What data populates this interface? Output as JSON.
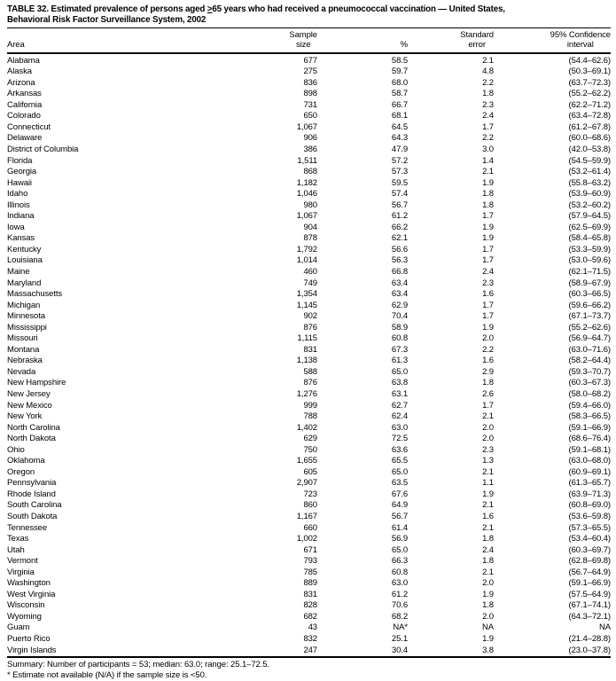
{
  "title": {
    "line1_before": "TABLE 32. Estimated prevalence of persons aged ",
    "geq": ">",
    "line1_after": "65 years who had received a pneumococcal vaccination — United States,",
    "line2": "Behavioral Risk Factor Surveillance System, 2002"
  },
  "header": {
    "area": "Area",
    "sample_top": "Sample",
    "sample_bottom": "size",
    "percent": "%",
    "se_top": "Standard",
    "se_bottom": "error",
    "ci_top": "95% Confidence",
    "ci_bottom": "interval"
  },
  "table": {
    "rows": [
      {
        "area": "Alabama",
        "sample": "677",
        "percent": "58.5",
        "se": "2.1",
        "ci": "(54.4–62.6)"
      },
      {
        "area": "Alaska",
        "sample": "275",
        "percent": "59.7",
        "se": "4.8",
        "ci": "(50.3–69.1)"
      },
      {
        "area": "Arizona",
        "sample": "836",
        "percent": "68.0",
        "se": "2.2",
        "ci": "(63.7–72.3)"
      },
      {
        "area": "Arkansas",
        "sample": "898",
        "percent": "58.7",
        "se": "1.8",
        "ci": "(55.2–62.2)"
      },
      {
        "area": "California",
        "sample": "731",
        "percent": "66.7",
        "se": "2.3",
        "ci": "(62.2–71.2)"
      },
      {
        "area": "Colorado",
        "sample": "650",
        "percent": "68.1",
        "se": "2.4",
        "ci": "(63.4–72.8)"
      },
      {
        "area": "Connecticut",
        "sample": "1,067",
        "percent": "64.5",
        "se": "1.7",
        "ci": "(61.2–67.8)"
      },
      {
        "area": "Delaware",
        "sample": "906",
        "percent": "64.3",
        "se": "2.2",
        "ci": "(60.0–68.6)"
      },
      {
        "area": "District of Columbia",
        "sample": "386",
        "percent": "47.9",
        "se": "3.0",
        "ci": "(42.0–53.8)"
      },
      {
        "area": "Florida",
        "sample": "1,511",
        "percent": "57.2",
        "se": "1.4",
        "ci": "(54.5–59.9)"
      },
      {
        "area": "Georgia",
        "sample": "868",
        "percent": "57.3",
        "se": "2.1",
        "ci": "(53.2–61.4)"
      },
      {
        "area": "Hawaii",
        "sample": "1,182",
        "percent": "59.5",
        "se": "1.9",
        "ci": "(55.8–63.2)"
      },
      {
        "area": "Idaho",
        "sample": "1,046",
        "percent": "57.4",
        "se": "1.8",
        "ci": "(53.9–60.9)"
      },
      {
        "area": "Illinois",
        "sample": "980",
        "percent": "56.7",
        "se": "1.8",
        "ci": "(53.2–60.2)"
      },
      {
        "area": "Indiana",
        "sample": "1,067",
        "percent": "61.2",
        "se": "1.7",
        "ci": "(57.9–64.5)"
      },
      {
        "area": "Iowa",
        "sample": "904",
        "percent": "66.2",
        "se": "1.9",
        "ci": "(62.5–69.9)"
      },
      {
        "area": "Kansas",
        "sample": "878",
        "percent": "62.1",
        "se": "1.9",
        "ci": "(58.4–65.8)"
      },
      {
        "area": "Kentucky",
        "sample": "1,792",
        "percent": "56.6",
        "se": "1.7",
        "ci": "(53.3–59.9)"
      },
      {
        "area": "Louisiana",
        "sample": "1,014",
        "percent": "56.3",
        "se": "1.7",
        "ci": "(53.0–59.6)"
      },
      {
        "area": "Maine",
        "sample": "460",
        "percent": "66.8",
        "se": "2.4",
        "ci": "(62.1–71.5)"
      },
      {
        "area": "Maryland",
        "sample": "749",
        "percent": "63.4",
        "se": "2.3",
        "ci": "(58.9–67.9)"
      },
      {
        "area": "Massachusetts",
        "sample": "1,354",
        "percent": "63.4",
        "se": "1.6",
        "ci": "(60.3–66.5)"
      },
      {
        "area": "Michigan",
        "sample": "1,145",
        "percent": "62.9",
        "se": "1.7",
        "ci": "(59.6–66.2)"
      },
      {
        "area": "Minnesota",
        "sample": "902",
        "percent": "70.4",
        "se": "1.7",
        "ci": "(67.1–73.7)"
      },
      {
        "area": "Mississippi",
        "sample": "876",
        "percent": "58.9",
        "se": "1.9",
        "ci": "(55.2–62.6)"
      },
      {
        "area": "Missouri",
        "sample": "1,115",
        "percent": "60.8",
        "se": "2.0",
        "ci": "(56.9–64.7)"
      },
      {
        "area": "Montana",
        "sample": "831",
        "percent": "67.3",
        "se": "2.2",
        "ci": "(63.0–71.6)"
      },
      {
        "area": "Nebraska",
        "sample": "1,138",
        "percent": "61.3",
        "se": "1.6",
        "ci": "(58.2–64.4)"
      },
      {
        "area": "Nevada",
        "sample": "588",
        "percent": "65.0",
        "se": "2.9",
        "ci": "(59.3–70.7)"
      },
      {
        "area": "New Hampshire",
        "sample": "876",
        "percent": "63.8",
        "se": "1.8",
        "ci": "(60.3–67.3)"
      },
      {
        "area": "New Jersey",
        "sample": "1,276",
        "percent": "63.1",
        "se": "2.6",
        "ci": "(58.0–68.2)"
      },
      {
        "area": "New Mexico",
        "sample": "999",
        "percent": "62.7",
        "se": "1.7",
        "ci": "(59.4–66.0)"
      },
      {
        "area": "New York",
        "sample": "788",
        "percent": "62.4",
        "se": "2.1",
        "ci": "(58.3–66.5)"
      },
      {
        "area": "North Carolina",
        "sample": "1,402",
        "percent": "63.0",
        "se": "2.0",
        "ci": "(59.1–66.9)"
      },
      {
        "area": "North Dakota",
        "sample": "629",
        "percent": "72.5",
        "se": "2.0",
        "ci": "(68.6–76.4)"
      },
      {
        "area": "Ohio",
        "sample": "750",
        "percent": "63.6",
        "se": "2.3",
        "ci": "(59.1–68.1)"
      },
      {
        "area": "Oklahoma",
        "sample": "1,655",
        "percent": "65.5",
        "se": "1.3",
        "ci": "(63.0–68.0)"
      },
      {
        "area": "Oregon",
        "sample": "605",
        "percent": "65.0",
        "se": "2.1",
        "ci": "(60.9–69.1)"
      },
      {
        "area": "Pennsylvania",
        "sample": "2,907",
        "percent": "63.5",
        "se": "1.1",
        "ci": "(61.3–65.7)"
      },
      {
        "area": "Rhode Island",
        "sample": "723",
        "percent": "67.6",
        "se": "1.9",
        "ci": "(63.9–71.3)"
      },
      {
        "area": "South Carolina",
        "sample": "860",
        "percent": "64.9",
        "se": "2.1",
        "ci": "(60.8–69.0)"
      },
      {
        "area": "South Dakota",
        "sample": "1,167",
        "percent": "56.7",
        "se": "1.6",
        "ci": "(53.6–59.8)"
      },
      {
        "area": "Tennessee",
        "sample": "660",
        "percent": "61.4",
        "se": "2.1",
        "ci": "(57.3–65.5)"
      },
      {
        "area": "Texas",
        "sample": "1,002",
        "percent": "56.9",
        "se": "1.8",
        "ci": "(53.4–60.4)"
      },
      {
        "area": "Utah",
        "sample": "671",
        "percent": "65.0",
        "se": "2.4",
        "ci": "(60.3–69.7)"
      },
      {
        "area": "Vermont",
        "sample": "793",
        "percent": "66.3",
        "se": "1.8",
        "ci": "(62.8–69.8)"
      },
      {
        "area": "Virginia",
        "sample": "785",
        "percent": "60.8",
        "se": "2.1",
        "ci": "(56.7–64.9)"
      },
      {
        "area": "Washington",
        "sample": "889",
        "percent": "63.0",
        "se": "2.0",
        "ci": "(59.1–66.9)"
      },
      {
        "area": "West Virginia",
        "sample": "831",
        "percent": "61.2",
        "se": "1.9",
        "ci": "(57.5–64.9)"
      },
      {
        "area": "Wisconsin",
        "sample": "828",
        "percent": "70.6",
        "se": "1.8",
        "ci": "(67.1–74.1)"
      },
      {
        "area": "Wyoming",
        "sample": "682",
        "percent": "68.2",
        "se": "2.0",
        "ci": "(64.3–72.1)"
      },
      {
        "area": "Guam",
        "sample": "43",
        "percent": "NA*",
        "se": "NA",
        "ci": "NA"
      },
      {
        "area": "Puerto Rico",
        "sample": "832",
        "percent": "25.1",
        "se": "1.9",
        "ci": "(21.4–28.8)"
      },
      {
        "area": "Virgin Islands",
        "sample": "247",
        "percent": "30.4",
        "se": "3.8",
        "ci": "(23.0–37.8)"
      }
    ]
  },
  "footer": {
    "summary": "Summary: Number of participants = 53; median: 63.0; range: 25.1–72.5.",
    "footnote": "* Estimate not available (N/A) if the sample size is <50."
  }
}
